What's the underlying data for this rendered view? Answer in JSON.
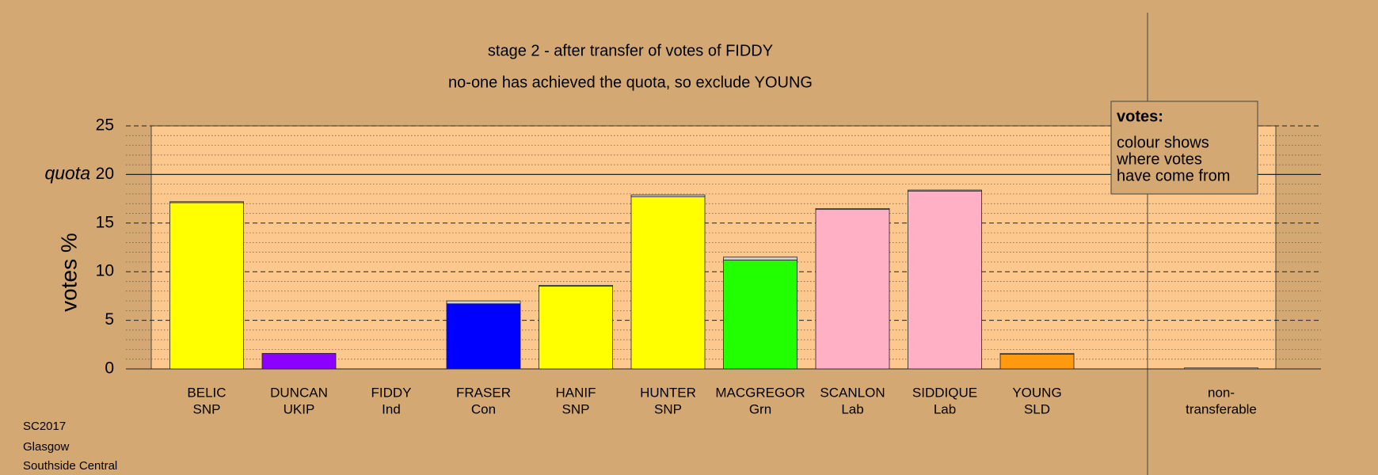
{
  "chart_data": {
    "type": "bar",
    "title": "stage 2 - after transfer of votes of FIDDY",
    "subtitle": "no-one has achieved the quota, so exclude YOUNG",
    "y_label": "votes %",
    "categories": [
      "BELIC",
      "DUNCAN",
      "FIDDY",
      "FRASER",
      "HANIF",
      "HUNTER",
      "MACGREGOR",
      "SCANLON",
      "SIDDIQUE",
      "YOUNG",
      "non-"
    ],
    "parties": [
      "SNP",
      "UKIP",
      "Ind",
      "Con",
      "SNP",
      "SNP",
      "Grn",
      "Lab",
      "Lab",
      "SLD",
      "transferable"
    ],
    "series": [
      {
        "colors": [
          "#ffff00",
          "#8b00ff",
          "#d3d3d3",
          "#0000ff",
          "#ffff00",
          "#ffff00",
          "#22ff00",
          "#ffb0c4",
          "#ffb0c4",
          "#ff9a10",
          "#d3d3d3"
        ],
        "values": [
          17.1,
          1.6,
          0,
          6.7,
          8.5,
          17.7,
          11.2,
          16.4,
          18.3,
          1.5,
          0
        ]
      },
      {
        "color": "#d3d3d3",
        "values": [
          0.1,
          0,
          0,
          0.3,
          0.1,
          0.2,
          0.3,
          0.1,
          0.1,
          0.1,
          0.1
        ]
      }
    ],
    "ylim": [
      0,
      25
    ],
    "yticks": [
      0,
      5,
      10,
      15,
      20,
      25
    ],
    "minor_yticks": [
      1,
      2,
      3,
      4,
      6,
      7,
      8,
      9,
      11,
      12,
      13,
      14,
      16,
      17,
      18,
      19,
      21,
      22,
      23,
      24
    ],
    "quota": 20,
    "quota_label": "quota",
    "legend": {
      "title": "votes:",
      "lines": [
        "colour shows",
        "where votes",
        "have come from"
      ]
    },
    "footer": [
      "SC2017",
      "Glasgow",
      "Southside Central"
    ]
  }
}
